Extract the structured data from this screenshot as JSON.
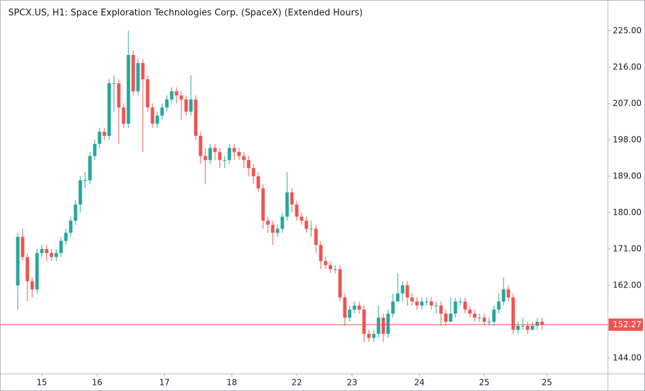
{
  "chart_data": {
    "type": "candlestick",
    "title": "SPCX.US, H1: Space Exploration Technologies Corp. (SpaceX) (Extended Hours)",
    "up_color": "#26a69a",
    "down_color": "#ef5350",
    "open": [
      162,
      174,
      169,
      163,
      161,
      170,
      171,
      170,
      169,
      170,
      173,
      175,
      178,
      182,
      188,
      188,
      194,
      197,
      200,
      199,
      212,
      212,
      206,
      202,
      219,
      210,
      217,
      213,
      206,
      202,
      204,
      206,
      208,
      210,
      209,
      208,
      205,
      208,
      199,
      194,
      193,
      196,
      195,
      193,
      193,
      196,
      195,
      194,
      193,
      191,
      189,
      186,
      178,
      177,
      175,
      176,
      179,
      185,
      182,
      179,
      178,
      176,
      176,
      172,
      168,
      167,
      166,
      166,
      159,
      154,
      156,
      157,
      156,
      150,
      149,
      150,
      154,
      150,
      155,
      158,
      160,
      162,
      159,
      158,
      157,
      158,
      158,
      157,
      157,
      155,
      153,
      155,
      158,
      158,
      156,
      155,
      154,
      154,
      153,
      153,
      156,
      158,
      161,
      159,
      151,
      152,
      152,
      151,
      152,
      153
    ],
    "high": [
      175,
      176,
      170,
      164,
      171,
      172,
      172,
      171,
      171,
      174,
      176,
      179,
      183,
      189,
      190,
      195,
      198,
      201,
      201,
      213,
      214,
      213,
      207,
      225,
      220,
      218,
      218,
      214,
      207,
      205,
      207,
      209,
      211,
      211,
      210,
      209,
      214,
      209,
      200,
      196,
      197,
      197,
      196,
      194,
      197,
      197,
      196,
      195,
      194,
      192,
      190,
      187,
      179,
      178,
      177,
      180,
      190,
      186,
      183,
      180,
      179,
      178,
      177,
      173,
      169,
      168,
      167,
      167,
      160,
      157,
      158,
      158,
      157,
      151,
      151,
      157,
      155,
      156,
      160,
      165,
      163,
      163,
      160,
      159,
      159,
      159,
      159,
      158,
      158,
      156,
      159,
      159,
      159,
      159,
      157,
      156,
      155,
      155,
      154,
      157,
      160,
      164,
      162,
      160,
      153,
      154,
      153,
      153,
      154,
      154
    ],
    "low": [
      156,
      168,
      158,
      159,
      160,
      169,
      168,
      168,
      168,
      169,
      172,
      174,
      177,
      180,
      186,
      187,
      193,
      196,
      198,
      198,
      205,
      197,
      201,
      201,
      209,
      209,
      195,
      205,
      201,
      201,
      203,
      205,
      207,
      207,
      203,
      204,
      204,
      198,
      192,
      187,
      192,
      193,
      191,
      191,
      192,
      193,
      193,
      191,
      189,
      187,
      185,
      176,
      175,
      172,
      174,
      175,
      178,
      180,
      178,
      177,
      175,
      174,
      170,
      166,
      166,
      165,
      165,
      158,
      152,
      153,
      155,
      155,
      148,
      148,
      148,
      149,
      148,
      149,
      154,
      158,
      158,
      157,
      157,
      156,
      156,
      157,
      156,
      155,
      152,
      152,
      153,
      154,
      157,
      155,
      154,
      153,
      153,
      152,
      152,
      152,
      155,
      157,
      158,
      150,
      150,
      151,
      150,
      151,
      151,
      151
    ],
    "close": [
      174,
      169,
      163,
      161,
      170,
      171,
      170,
      169,
      170,
      173,
      175,
      178,
      182,
      188,
      188,
      194,
      197,
      200,
      199,
      212,
      212,
      206,
      202,
      219,
      210,
      217,
      213,
      206,
      202,
      204,
      206,
      208,
      210,
      209,
      208,
      205,
      208,
      199,
      194,
      193,
      196,
      195,
      193,
      193,
      196,
      195,
      194,
      193,
      191,
      189,
      186,
      178,
      177,
      175,
      176,
      179,
      185,
      182,
      179,
      178,
      176,
      176,
      172,
      168,
      167,
      166,
      166,
      159,
      154,
      156,
      157,
      156,
      150,
      149,
      150,
      154,
      150,
      155,
      158,
      160,
      162,
      159,
      158,
      157,
      158,
      158,
      157,
      157,
      155,
      153,
      155,
      158,
      158,
      156,
      155,
      154,
      154,
      153,
      153,
      156,
      158,
      161,
      159,
      151,
      152,
      152,
      151,
      152,
      153,
      152.27
    ],
    "last_price": 152.27,
    "xlim": [
      -3.7,
      122.7
    ],
    "xticks": [
      {
        "value": 5,
        "label": "15"
      },
      {
        "value": 16.5,
        "label": "16"
      },
      {
        "value": 30.5,
        "label": "17"
      },
      {
        "value": 44.5,
        "label": "18"
      },
      {
        "value": 58,
        "label": "22"
      },
      {
        "value": 69.5,
        "label": "23"
      },
      {
        "value": 83.5,
        "label": "24"
      },
      {
        "value": 97,
        "label": "25"
      },
      {
        "value": 110,
        "label": "25"
      }
    ],
    "ylim": [
      140.1,
      232.6
    ],
    "yticks": [
      {
        "value": 144,
        "label": "144.00"
      },
      {
        "value": 162,
        "label": "162.00"
      },
      {
        "value": 171,
        "label": "171.00"
      },
      {
        "value": 180,
        "label": "180.00"
      },
      {
        "value": 189,
        "label": "189.00"
      },
      {
        "value": 198,
        "label": "198.00"
      },
      {
        "value": 207,
        "label": "207.00"
      },
      {
        "value": 216,
        "label": "216.00"
      },
      {
        "value": 225,
        "label": "225.00"
      }
    ]
  }
}
